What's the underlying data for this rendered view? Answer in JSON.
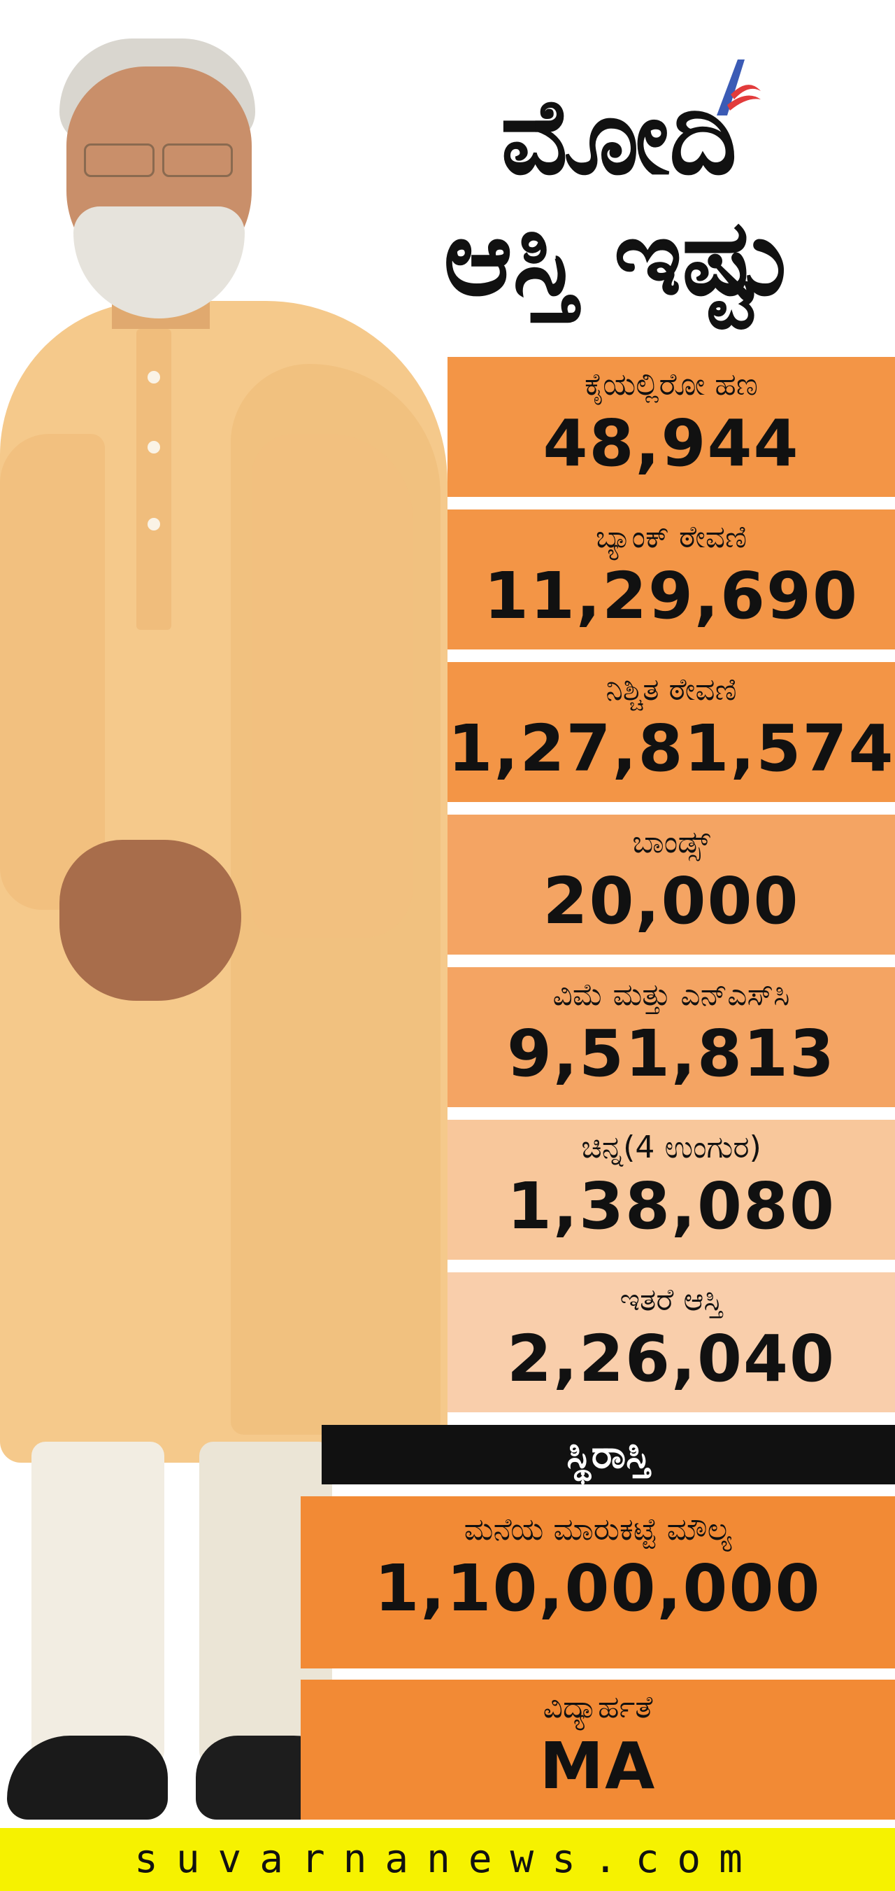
{
  "title": {
    "line1": "ಮೋದಿ",
    "line2": "ಆಸ್ತಿ ಇಷ್ಟು"
  },
  "panels": [
    {
      "label": "ಕೈಯಲ್ಲಿರೋ ಹಣ",
      "value": "48,944",
      "color": "#f39546"
    },
    {
      "label": "ಬ್ಯಾಂಕ್ ಠೇವಣಿ",
      "value": "11,29,690",
      "color": "#f39546"
    },
    {
      "label": "ನಿಶ್ಚಿತ ಠೇವಣಿ",
      "value": "1,27,81,574",
      "color": "#f39546"
    },
    {
      "label": "ಬಾಂಡ್ಸ್",
      "value": "20,000",
      "color": "#f4a463"
    },
    {
      "label": "ವಿಮೆ ಮತ್ತು ಎನ್‌ಎಸ್‌ಸಿ",
      "value": "9,51,813",
      "color": "#f4a463"
    },
    {
      "label": "ಚಿನ್ನ(4 ಉಂಗುರ)",
      "value": "1,38,080",
      "color": "#f8c79b"
    },
    {
      "label": "ಇತರೆ ಆಸ್ತಿ",
      "value": "2,26,040",
      "color": "#f9ceab"
    }
  ],
  "section_heading": "ಸ್ಥಿರಾಸ್ತಿ",
  "property_panels": [
    {
      "label": "ಮನೆಯ ಮಾರುಕಟ್ಟೆ ಮೌಲ್ಯ",
      "value": "1,10,00,000",
      "color": "#f28a35"
    },
    {
      "label": "ವಿದ್ಯಾರ್ಹತೆ",
      "value": "MA",
      "color": "#f28a35"
    }
  ],
  "footer": "suvarnanews.com"
}
